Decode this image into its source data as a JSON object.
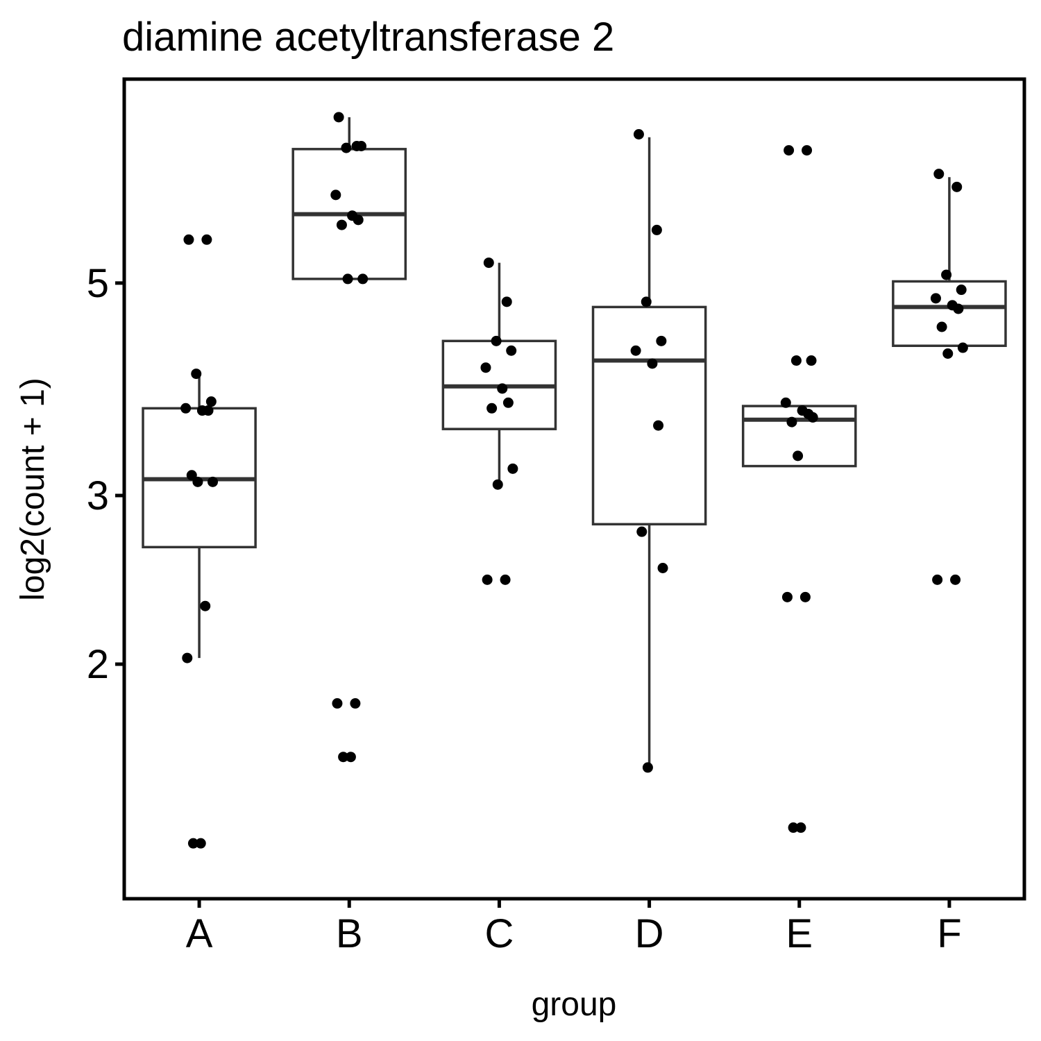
{
  "chart_data": {
    "type": "box",
    "title": "diamine acetyltransferase 2",
    "xlabel": "group",
    "ylabel": "log2(count + 1)",
    "y_scale": "log",
    "ylim": [
      1.15,
      7.7
    ],
    "yticks": [
      2,
      3,
      5
    ],
    "ytick_labels": [
      "2",
      "3",
      "5"
    ],
    "grid": false,
    "legend": "none",
    "categories": [
      "A",
      "B",
      "C",
      "D",
      "E",
      "F"
    ],
    "boxes": [
      {
        "group": "A",
        "whisker_low": 2.03,
        "q1": 2.65,
        "median": 3.12,
        "q3": 3.7,
        "whisker_high": 4.0
      },
      {
        "group": "B",
        "whisker_low": 5.05,
        "q1": 5.05,
        "median": 5.9,
        "q3": 6.9,
        "whisker_high": 7.45
      },
      {
        "group": "C",
        "whisker_low": 3.08,
        "q1": 3.52,
        "median": 3.9,
        "q3": 4.35,
        "whisker_high": 5.25
      },
      {
        "group": "D",
        "whisker_low": 1.55,
        "q1": 2.8,
        "median": 4.15,
        "q3": 4.72,
        "whisker_high": 7.1
      },
      {
        "group": "E",
        "whisker_low": 3.22,
        "q1": 3.22,
        "median": 3.6,
        "q3": 3.72,
        "whisker_high": 3.72
      },
      {
        "group": "F",
        "whisker_low": 4.3,
        "q1": 4.3,
        "median": 4.72,
        "q3": 5.02,
        "whisker_high": 6.45
      }
    ],
    "points": [
      {
        "group": "A",
        "values": [
          5.55,
          5.55,
          4.02,
          3.76,
          3.7,
          3.68,
          3.68,
          3.15,
          3.1,
          3.1,
          2.3,
          2.03,
          1.3,
          1.3
        ]
      },
      {
        "group": "B",
        "values": [
          7.45,
          6.95,
          6.92,
          6.95,
          6.18,
          5.88,
          5.82,
          5.75,
          5.05,
          5.05,
          1.82,
          1.82,
          1.6,
          1.6
        ]
      },
      {
        "group": "C",
        "values": [
          5.25,
          4.78,
          4.35,
          4.25,
          4.08,
          3.88,
          3.75,
          3.7,
          3.2,
          3.08,
          2.45,
          2.45
        ]
      },
      {
        "group": "D",
        "values": [
          7.15,
          5.68,
          4.78,
          4.35,
          4.25,
          4.12,
          3.55,
          2.75,
          2.52,
          1.56
        ]
      },
      {
        "group": "E",
        "values": [
          6.88,
          6.88,
          4.15,
          4.15,
          3.75,
          3.68,
          3.65,
          3.58,
          3.62,
          3.3,
          2.35,
          2.35,
          1.35,
          1.35
        ]
      },
      {
        "group": "F",
        "values": [
          6.5,
          6.3,
          5.1,
          4.92,
          4.82,
          4.74,
          4.7,
          4.5,
          4.28,
          4.22,
          2.45,
          2.45
        ]
      }
    ]
  }
}
